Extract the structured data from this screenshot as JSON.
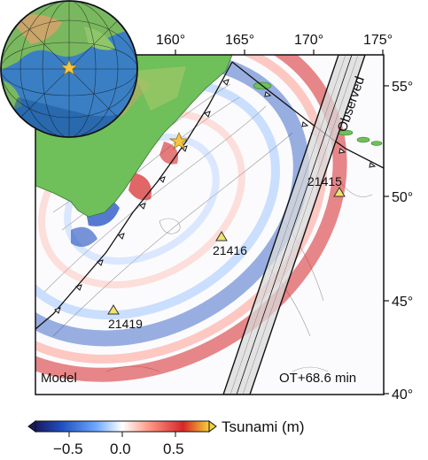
{
  "map": {
    "lon_ticks": [
      "160°",
      "165°",
      "170°",
      "175°"
    ],
    "lat_ticks": [
      "55°",
      "50°",
      "45°",
      "40°"
    ],
    "model_label": "Model",
    "time_label": "OT+68.6 min",
    "observed_label": "Observed",
    "colors": {
      "positive": "#d62728",
      "negative": "#1f4fbf",
      "land": "#6fbf5a",
      "epicenter": "#f6c342",
      "station": "#f1e36b"
    }
  },
  "stations": [
    {
      "id": "21415",
      "label": "21415"
    },
    {
      "id": "21416",
      "label": "21416"
    },
    {
      "id": "21419",
      "label": "21419"
    }
  ],
  "colorbar": {
    "title": "Tsunami (m)",
    "ticks": [
      "−0.5",
      "0.0",
      "0.5"
    ],
    "range": [
      -0.8,
      0.8
    ]
  },
  "inset": {
    "marker_icon": "star-icon"
  }
}
